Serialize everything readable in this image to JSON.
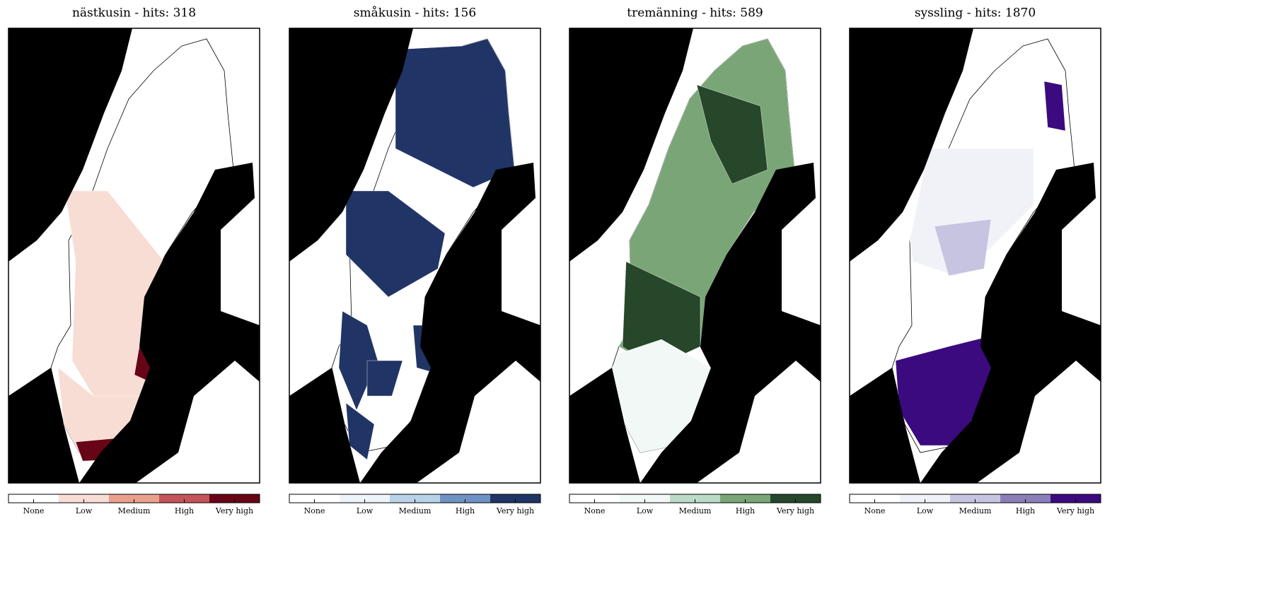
{
  "panels": [
    {
      "title": "nästkusin - hits: 318",
      "colors": [
        "#ffffff",
        "#f7ddd3",
        "#eaa08c",
        "#c4545a",
        "#670516"
      ]
    },
    {
      "title": "småkusin - hits: 156",
      "colors": [
        "#ffffff",
        "#eef4fa",
        "#b8d2e8",
        "#6f92c4",
        "#213466"
      ]
    },
    {
      "title": "tremänning - hits: 589",
      "colors": [
        "#ffffff",
        "#f1f8f5",
        "#bcdac8",
        "#7aa677",
        "#26472a"
      ]
    },
    {
      "title": "syssling - hits: 1870",
      "colors": [
        "#ffffff",
        "#f1f1f8",
        "#c6c4e0",
        "#8b7fba",
        "#3b0a7e"
      ]
    }
  ],
  "legend_labels": [
    "None",
    "Low",
    "Medium",
    "High",
    "Very high"
  ]
}
